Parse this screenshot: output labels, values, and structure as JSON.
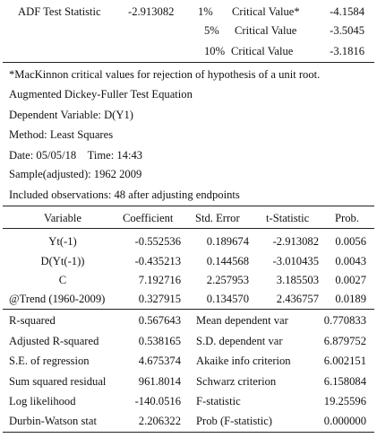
{
  "adf": {
    "label": "ADF Test Statistic",
    "value": "-2.913082",
    "critical": [
      {
        "level": "1%",
        "label": "Critical Value*",
        "value": "-4.1584"
      },
      {
        "level": "5%",
        "label": "Critical Value",
        "value": "-3.5045"
      },
      {
        "level": "10%",
        "label": "Critical Value",
        "value": "-3.1816"
      }
    ]
  },
  "info_lines": [
    "*MacKinnon critical values for rejection of hypothesis of a unit root.",
    "Augmented Dickey-Fuller Test Equation",
    "Dependent Variable: D(Y1)",
    "Method: Least Squares",
    "Date: 05/05/18    Time: 14:43",
    "Sample(adjusted): 1962 2009",
    "Included observations: 48 after adjusting endpoints"
  ],
  "coef_table": {
    "headers": [
      "Variable",
      "Coefficient",
      "Std. Error",
      "t-Statistic",
      "Prob."
    ],
    "rows": [
      [
        "Yt(-1)",
        "-0.552536",
        "0.189674",
        "-2.913082",
        "0.0056"
      ],
      [
        "D(Yt(-1))",
        "-0.435213",
        "0.144568",
        "-3.010435",
        "0.0043"
      ],
      [
        "C",
        "7.192716",
        "2.257953",
        "3.185503",
        "0.0027"
      ],
      [
        "@Trend (1960-2009)",
        "0.327915",
        "0.134570",
        "2.436757",
        "0.0189"
      ]
    ]
  },
  "stats": [
    [
      "R-squared",
      "0.567643",
      "Mean dependent var",
      "0.770833"
    ],
    [
      "Adjusted R-squared",
      "0.538165",
      "S.D. dependent var",
      "6.879752"
    ],
    [
      "S.E. of regression",
      "4.675374",
      "Akaike info criterion",
      "6.002151"
    ],
    [
      "Sum squared residual",
      "961.8014",
      "Schwarz criterion",
      "6.158084"
    ],
    [
      "Log likelihood",
      "-140.0516",
      "F-statistic",
      "19.25596"
    ],
    [
      "Durbin-Watson stat",
      "2.206322",
      "Prob (F-statistic)",
      "0.000000"
    ]
  ]
}
